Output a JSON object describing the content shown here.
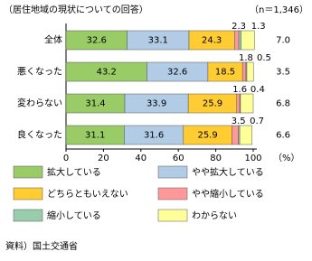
{
  "chart_data": {
    "type": "stacked-bar-horizontal",
    "title": "（居住地域の現状についての回答）",
    "subtitle": "（n＝1,346）",
    "categories": [
      "全体",
      "悪くなった",
      "変わらない",
      "良くなった"
    ],
    "series": [
      {
        "name": "拡大している",
        "color": "#99cc66",
        "values": [
          32.6,
          43.2,
          31.4,
          31.1
        ]
      },
      {
        "name": "やや拡大している",
        "color": "#b3cce6",
        "values": [
          33.1,
          32.6,
          33.9,
          31.6
        ]
      },
      {
        "name": "どちらともいえない",
        "color": "#ffcc33",
        "values": [
          24.3,
          18.5,
          25.9,
          25.9
        ]
      },
      {
        "name": "やや縮小している",
        "color": "#ff9999",
        "values": [
          2.3,
          1.8,
          1.6,
          3.5
        ]
      },
      {
        "name": "縮小している",
        "color": "#99ccaa",
        "values": [
          1.3,
          0.5,
          0.4,
          0.7
        ]
      },
      {
        "name": "わからない",
        "color": "#ffff99",
        "values": [
          7,
          3.5,
          6.8,
          6.6
        ],
        "value_labels": [
          "7.0",
          "3.5",
          "6.8",
          "6.6"
        ]
      }
    ],
    "xlim": [
      0,
      100
    ],
    "xticks": [
      0,
      20,
      40,
      60,
      80,
      100
    ],
    "xlabel": "（%）",
    "source": "資料）国土交通省",
    "grid": false
  }
}
